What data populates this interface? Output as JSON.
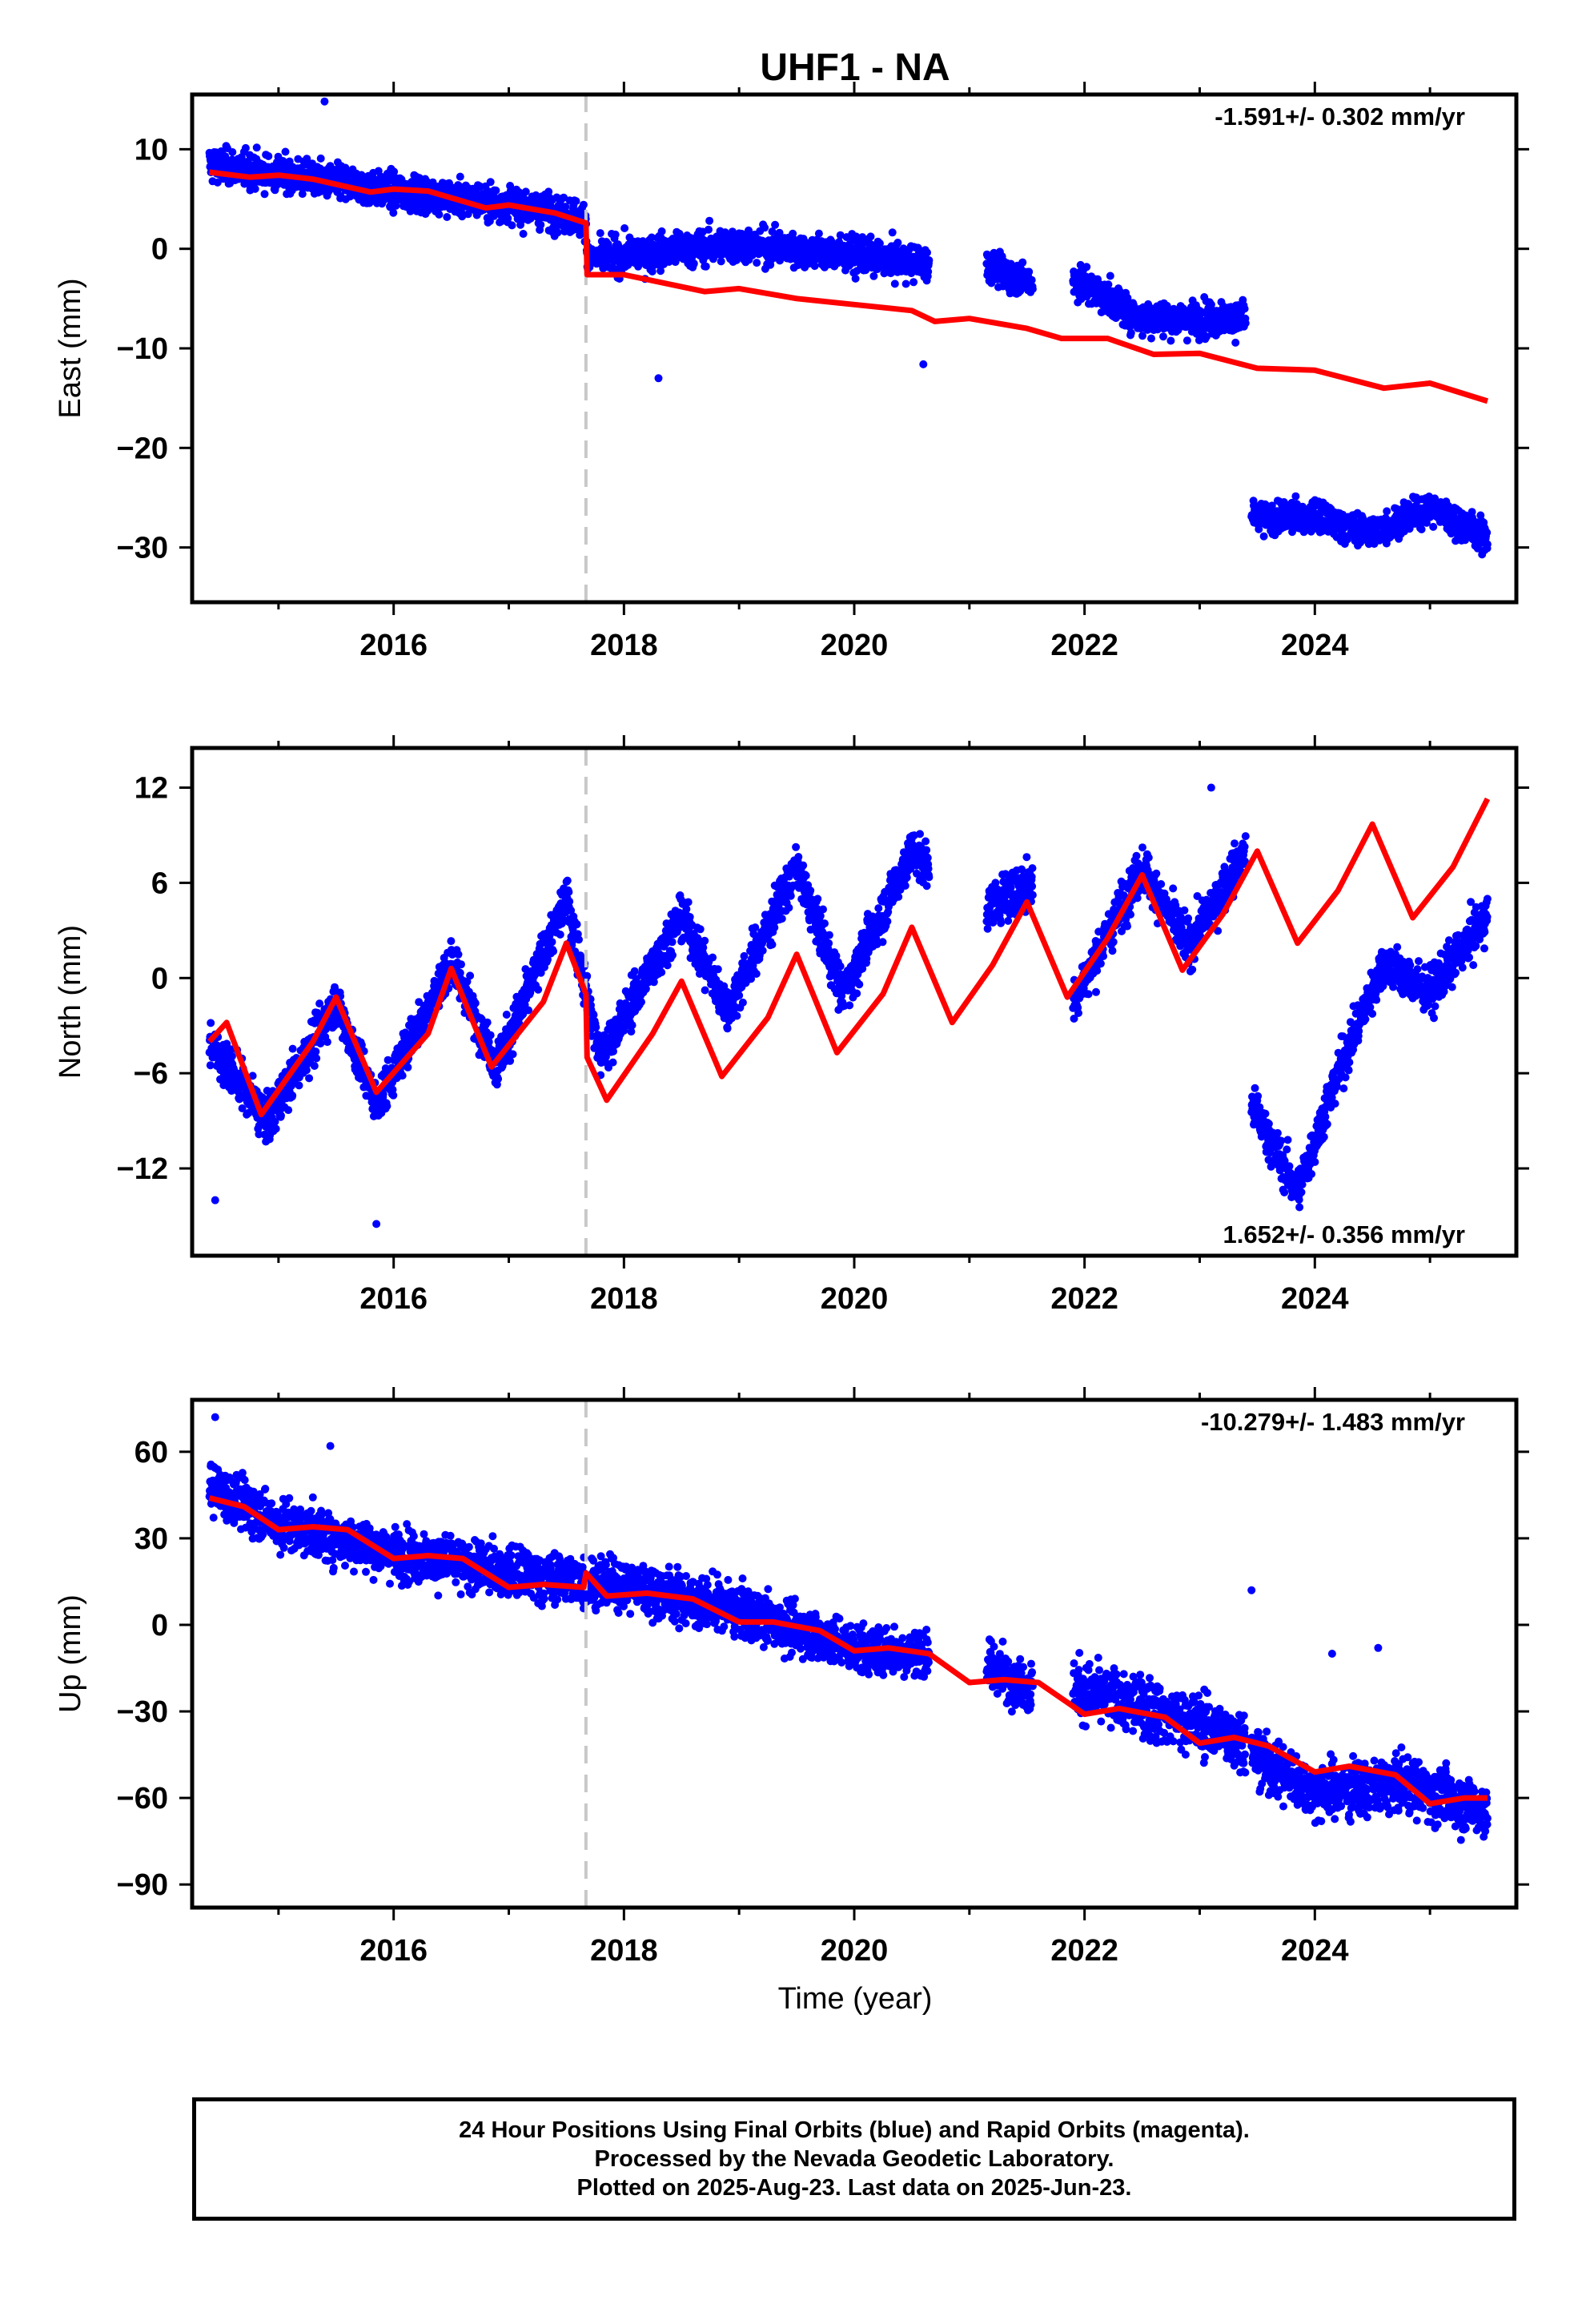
{
  "title": "UHF1 - NA",
  "xlabel": "Time (year)",
  "footer": {
    "line1": "24 Hour Positions Using Final Orbits (blue) and Rapid Orbits (magenta).",
    "line2": "Processed by the Nevada Geodetic Laboratory.",
    "line3": "Plotted on 2025-Aug-23. Last data on 2025-Jun-23."
  },
  "colors": {
    "points": "#0000ff",
    "model": "#ff0000",
    "equipment_change": "#c8c8c8",
    "frame": "#000000"
  },
  "chart_data": [
    {
      "type": "scatter",
      "component": "east",
      "ylabel": "East (mm)",
      "rate_text": "-1.591+/- 0.302 mm/yr",
      "xlim": [
        2014.25,
        2025.75
      ],
      "ylim": [
        -35.5,
        15.5
      ],
      "xticks": [
        2016,
        2018,
        2020,
        2022,
        2024
      ],
      "yticks": [
        10,
        0,
        -10,
        -20,
        -30
      ],
      "ytick_labels": [
        "10",
        "0",
        "−10",
        "−20",
        "−30"
      ],
      "equipment_change_year": 2017.67,
      "segments": [
        {
          "x0": 2014.4,
          "x1": 2020.65,
          "trend": [
            [
              2014.4,
              8.5
            ],
            [
              2016.0,
              5.8
            ],
            [
              2017.0,
              4.5
            ],
            [
              2017.67,
              3.0
            ],
            [
              2017.68,
              -1.0
            ],
            [
              2019.0,
              0.5
            ],
            [
              2020.65,
              -1.5
            ]
          ],
          "noise": 2.2
        },
        {
          "x0": 2021.15,
          "x1": 2021.55,
          "trend": [
            [
              2021.15,
              -1.8
            ],
            [
              2021.55,
              -3.5
            ]
          ],
          "noise": 2.0
        },
        {
          "x0": 2021.9,
          "x1": 2023.4,
          "trend": [
            [
              2021.9,
              -3.0
            ],
            [
              2022.5,
              -7.0
            ],
            [
              2023.4,
              -7.0
            ]
          ],
          "noise": 2.2
        },
        {
          "x0": 2023.45,
          "x1": 2025.5,
          "trend": [
            [
              2023.45,
              -27.0
            ],
            [
              2024.0,
              -27.0
            ],
            [
              2024.5,
              -28.5
            ],
            [
              2025.0,
              -26.0
            ],
            [
              2025.5,
              -29.0
            ]
          ],
          "noise": 2.0
        }
      ],
      "outliers": [
        [
          2018.3,
          -13.0
        ],
        [
          2015.4,
          14.8
        ],
        [
          2020.6,
          -11.6
        ]
      ],
      "model": [
        [
          2014.4,
          7.7
        ],
        [
          2014.75,
          7.2
        ],
        [
          2015.0,
          7.4
        ],
        [
          2015.3,
          7.0
        ],
        [
          2015.8,
          5.7
        ],
        [
          2016.0,
          6.0
        ],
        [
          2016.3,
          5.8
        ],
        [
          2016.8,
          4.1
        ],
        [
          2017.0,
          4.4
        ],
        [
          2017.4,
          3.6
        ],
        [
          2017.67,
          2.6
        ],
        [
          2017.68,
          -2.6
        ],
        [
          2018.0,
          -2.6
        ],
        [
          2018.7,
          -4.3
        ],
        [
          2019.0,
          -4.0
        ],
        [
          2019.5,
          -5.0
        ],
        [
          2020.0,
          -5.6
        ],
        [
          2020.5,
          -6.2
        ],
        [
          2020.7,
          -7.3
        ],
        [
          2021.0,
          -7.0
        ],
        [
          2021.5,
          -8.0
        ],
        [
          2021.8,
          -9.0
        ],
        [
          2022.2,
          -9.0
        ],
        [
          2022.6,
          -10.6
        ],
        [
          2023.0,
          -10.5
        ],
        [
          2023.5,
          -12.0
        ],
        [
          2024.0,
          -12.2
        ],
        [
          2024.6,
          -14.0
        ],
        [
          2025.0,
          -13.5
        ],
        [
          2025.5,
          -15.3
        ]
      ]
    },
    {
      "type": "scatter",
      "component": "north",
      "ylabel": "North (mm)",
      "rate_text": "1.652+/- 0.356 mm/yr",
      "xlim": [
        2014.25,
        2025.75
      ],
      "ylim": [
        -17.5,
        14.5
      ],
      "xticks": [
        2016,
        2018,
        2020,
        2022,
        2024
      ],
      "yticks": [
        12,
        6,
        0,
        -6,
        -12
      ],
      "ytick_labels": [
        "12",
        "6",
        "0",
        "−6",
        "−12"
      ],
      "equipment_change_year": 2017.67,
      "segments": [
        {
          "x0": 2014.4,
          "x1": 2020.65,
          "trend": [
            [
              2014.4,
              -4.0
            ],
            [
              2014.9,
              -9.0
            ],
            [
              2015.5,
              -1.5
            ],
            [
              2015.85,
              -8.0
            ],
            [
              2016.5,
              1.0
            ],
            [
              2016.9,
              -5.5
            ],
            [
              2017.5,
              5.0
            ],
            [
              2017.8,
              -5.0
            ],
            [
              2018.5,
              4.0
            ],
            [
              2018.9,
              -2.0
            ],
            [
              2019.5,
              7.0
            ],
            [
              2019.9,
              -1.0
            ],
            [
              2020.5,
              8.0
            ],
            [
              2020.65,
              7.0
            ]
          ],
          "noise": 1.8
        },
        {
          "x0": 2021.15,
          "x1": 2021.55,
          "trend": [
            [
              2021.15,
              4.5
            ],
            [
              2021.55,
              6.0
            ]
          ],
          "noise": 1.8
        },
        {
          "x0": 2021.9,
          "x1": 2023.4,
          "trend": [
            [
              2021.9,
              -1.5
            ],
            [
              2022.5,
              7.0
            ],
            [
              2022.9,
              2.0
            ],
            [
              2023.4,
              8.0
            ]
          ],
          "noise": 1.8
        },
        {
          "x0": 2023.45,
          "x1": 2025.5,
          "trend": [
            [
              2023.45,
              -8.0
            ],
            [
              2023.85,
              -13.5
            ],
            [
              2024.2,
              -6.0
            ],
            [
              2024.6,
              1.0
            ],
            [
              2025.0,
              -1.0
            ],
            [
              2025.5,
              4.0
            ]
          ],
          "noise": 1.8
        }
      ],
      "outliers": [
        [
          2014.45,
          -14.0
        ],
        [
          2015.85,
          -15.5
        ],
        [
          2023.1,
          12.0
        ]
      ],
      "model": [
        [
          2014.4,
          -4.0
        ],
        [
          2014.55,
          -2.8
        ],
        [
          2014.85,
          -8.6
        ],
        [
          2015.3,
          -4.0
        ],
        [
          2015.5,
          -1.2
        ],
        [
          2015.85,
          -7.2
        ],
        [
          2016.3,
          -3.5
        ],
        [
          2016.5,
          0.6
        ],
        [
          2016.85,
          -5.6
        ],
        [
          2017.3,
          -1.5
        ],
        [
          2017.5,
          2.2
        ],
        [
          2017.67,
          -1.0
        ],
        [
          2017.68,
          -5.0
        ],
        [
          2017.85,
          -7.7
        ],
        [
          2018.25,
          -3.5
        ],
        [
          2018.5,
          -0.2
        ],
        [
          2018.85,
          -6.2
        ],
        [
          2019.25,
          -2.5
        ],
        [
          2019.5,
          1.5
        ],
        [
          2019.85,
          -4.7
        ],
        [
          2020.25,
          -1.0
        ],
        [
          2020.5,
          3.2
        ],
        [
          2020.85,
          -2.8
        ],
        [
          2021.2,
          0.8
        ],
        [
          2021.5,
          4.8
        ],
        [
          2021.85,
          -1.2
        ],
        [
          2022.2,
          2.5
        ],
        [
          2022.5,
          6.5
        ],
        [
          2022.85,
          0.5
        ],
        [
          2023.2,
          4.0
        ],
        [
          2023.5,
          8.0
        ],
        [
          2023.85,
          2.2
        ],
        [
          2024.2,
          5.5
        ],
        [
          2024.5,
          9.7
        ],
        [
          2024.85,
          3.8
        ],
        [
          2025.2,
          7.0
        ],
        [
          2025.5,
          11.3
        ]
      ]
    },
    {
      "type": "scatter",
      "component": "up",
      "ylabel": "Up (mm)",
      "rate_text": "-10.279+/- 1.483 mm/yr",
      "xlim": [
        2014.25,
        2025.75
      ],
      "ylim": [
        -98,
        78
      ],
      "xticks": [
        2016,
        2018,
        2020,
        2022,
        2024
      ],
      "yticks": [
        60,
        30,
        0,
        -30,
        -60,
        -90
      ],
      "ytick_labels": [
        "60",
        "30",
        "0",
        "−30",
        "−60",
        "−90"
      ],
      "equipment_change_year": 2017.67,
      "segments": [
        {
          "x0": 2014.4,
          "x1": 2020.65,
          "trend": [
            [
              2014.4,
              48
            ],
            [
              2015.0,
              35
            ],
            [
              2016.0,
              25
            ],
            [
              2017.0,
              18
            ],
            [
              2017.67,
              15
            ],
            [
              2018.0,
              14
            ],
            [
              2019.0,
              5
            ],
            [
              2020.0,
              -8
            ],
            [
              2020.65,
              -10
            ]
          ],
          "noise": 11
        },
        {
          "x0": 2021.15,
          "x1": 2021.55,
          "trend": [
            [
              2021.15,
              -14
            ],
            [
              2021.55,
              -22
            ]
          ],
          "noise": 11
        },
        {
          "x0": 2021.9,
          "x1": 2023.4,
          "trend": [
            [
              2021.9,
              -22
            ],
            [
              2022.5,
              -28
            ],
            [
              2023.4,
              -40
            ]
          ],
          "noise": 13
        },
        {
          "x0": 2023.45,
          "x1": 2025.5,
          "trend": [
            [
              2023.45,
              -45
            ],
            [
              2024.0,
              -58
            ],
            [
              2024.8,
              -55
            ],
            [
              2025.5,
              -65
            ]
          ],
          "noise": 12
        }
      ],
      "outliers": [
        [
          2014.45,
          72
        ],
        [
          2015.45,
          62
        ],
        [
          2023.45,
          12
        ],
        [
          2024.55,
          -8
        ],
        [
          2024.15,
          -10
        ]
      ],
      "model": [
        [
          2014.4,
          44
        ],
        [
          2014.7,
          41
        ],
        [
          2015.0,
          33
        ],
        [
          2015.3,
          34
        ],
        [
          2015.6,
          33
        ],
        [
          2016.0,
          23
        ],
        [
          2016.3,
          24
        ],
        [
          2016.6,
          23
        ],
        [
          2017.0,
          13
        ],
        [
          2017.3,
          14
        ],
        [
          2017.65,
          13
        ],
        [
          2017.67,
          18
        ],
        [
          2017.85,
          10
        ],
        [
          2018.2,
          11
        ],
        [
          2018.6,
          9
        ],
        [
          2019.0,
          1
        ],
        [
          2019.3,
          1
        ],
        [
          2019.7,
          -2
        ],
        [
          2020.0,
          -9
        ],
        [
          2020.3,
          -8
        ],
        [
          2020.65,
          -10
        ],
        [
          2021.0,
          -20
        ],
        [
          2021.3,
          -19
        ],
        [
          2021.6,
          -20
        ],
        [
          2022.0,
          -31
        ],
        [
          2022.3,
          -29
        ],
        [
          2022.7,
          -32
        ],
        [
          2023.0,
          -41
        ],
        [
          2023.3,
          -39
        ],
        [
          2023.6,
          -42
        ],
        [
          2024.0,
          -51
        ],
        [
          2024.3,
          -49
        ],
        [
          2024.7,
          -52
        ],
        [
          2025.0,
          -62
        ],
        [
          2025.3,
          -60
        ],
        [
          2025.5,
          -60
        ]
      ]
    }
  ]
}
